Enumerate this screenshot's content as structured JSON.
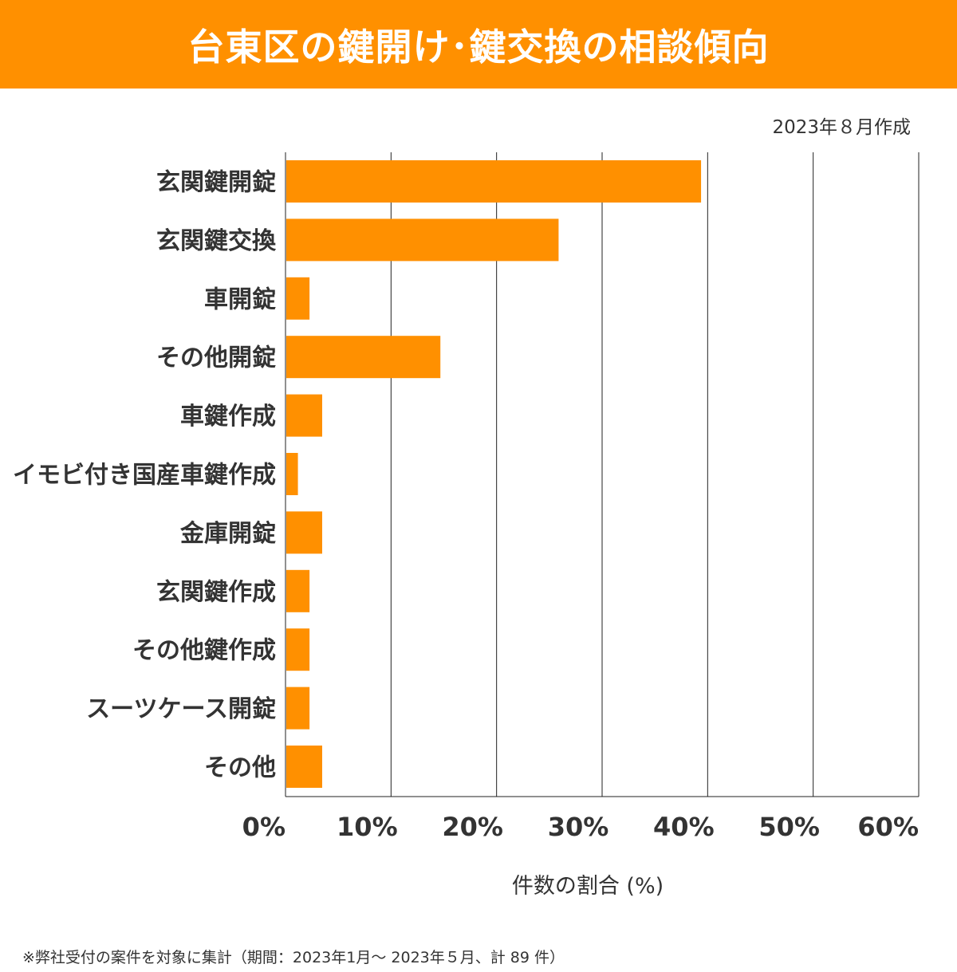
{
  "header": {
    "title": "台東区の鍵開け･鍵交換の相談傾向"
  },
  "date_note": "2023年８月作成",
  "footnote": "※弊社受付の案件を対象に集計（期間：2023年1月～ 2023年５月、計 89 件）",
  "colors": {
    "accent": "#FF9000",
    "bar": "#FF9000",
    "grid": "#222222",
    "text": "#333333"
  },
  "chart_data": {
    "type": "bar",
    "orientation": "horizontal",
    "categories": [
      "玄関鍵開錠",
      "玄関鍵交換",
      "車開錠",
      "その他開錠",
      "車鍵作成",
      "イモビ付き国産車鍵作成",
      "金庫開錠",
      "玄関鍵作成",
      "その他鍵作成",
      "スーツケース開錠",
      "その他"
    ],
    "values": [
      39.3,
      25.8,
      2.2,
      14.6,
      3.4,
      1.1,
      3.4,
      2.2,
      2.2,
      2.2,
      3.4
    ],
    "xlim": [
      0,
      60
    ],
    "xticks": [
      "0%",
      "10%",
      "20%",
      "30%",
      "40%",
      "50%",
      "60%"
    ],
    "xlabel": "件数の割合 (%)",
    "ylabel": "",
    "grid": "vertical"
  }
}
